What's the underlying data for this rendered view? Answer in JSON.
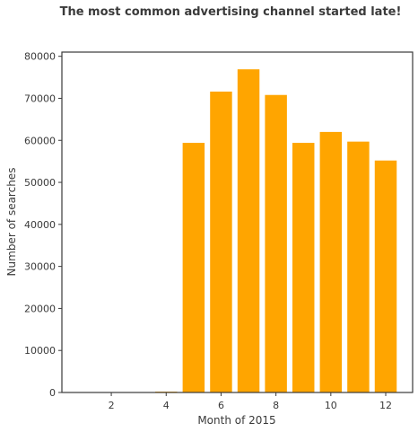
{
  "chart_data": {
    "type": "bar",
    "title": "The most common advertising channel started late!",
    "xlabel": "Month of 2015",
    "ylabel": "Number of searches",
    "x": [
      1,
      2,
      3,
      4,
      5,
      6,
      7,
      8,
      9,
      10,
      11,
      12
    ],
    "values": [
      20,
      30,
      50,
      200,
      59400,
      71600,
      76900,
      70800,
      59400,
      62000,
      59700,
      55200
    ],
    "xlim": [
      0.2,
      12.98
    ],
    "ylim": [
      0,
      81000
    ],
    "xticks": [
      2,
      4,
      6,
      8,
      10,
      12
    ],
    "yticks": [
      0,
      10000,
      20000,
      30000,
      40000,
      50000,
      60000,
      70000,
      80000
    ],
    "bar_color": "#ffa500",
    "grid": false,
    "legend": null
  }
}
